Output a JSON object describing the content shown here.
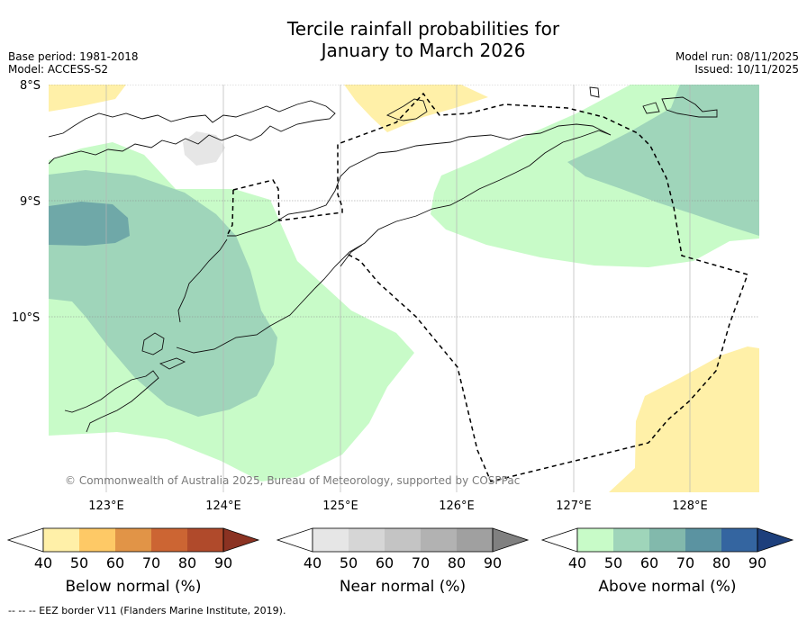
{
  "title": {
    "line1": "Tercile rainfall probabilities for",
    "line2": "January to March 2026"
  },
  "meta": {
    "base_period": "Base period: 1981-2018",
    "model": "Model: ACCESS-S2",
    "model_run": "Model run: 08/11/2025",
    "issued": "Issued: 10/11/2025"
  },
  "map": {
    "latitudes": [
      "8°S",
      "9°S",
      "10°S"
    ],
    "longitudes": [
      "123°E",
      "124°E",
      "125°E",
      "126°E",
      "127°E",
      "128°E"
    ],
    "copyright": "© Commonwealth of Australia 2025, Bureau of Meteorology, supported by COSPPac"
  },
  "colorbars": [
    {
      "title": "Below normal (%)",
      "ticks": [
        "40",
        "50",
        "60",
        "70",
        "80",
        "90"
      ],
      "colors": [
        "#fff0a8",
        "#fec966",
        "#e19447",
        "#cc6533",
        "#b04a2b",
        "#8b3222"
      ]
    },
    {
      "title": "Near normal (%)",
      "ticks": [
        "40",
        "50",
        "60",
        "70",
        "80",
        "90"
      ],
      "colors": [
        "#e6e6e6",
        "#d6d6d6",
        "#c4c4c4",
        "#b2b2b2",
        "#a0a0a0",
        "#808080"
      ]
    },
    {
      "title": "Above normal (%)",
      "ticks": [
        "40",
        "50",
        "60",
        "70",
        "80",
        "90"
      ],
      "colors": [
        "#c8fbc8",
        "#9fd5ba",
        "#82b9ac",
        "#5b93a1",
        "#3465a0",
        "#1d3f7c"
      ]
    }
  ],
  "footnote": "--  --  -- EEZ border V11 (Flanders Marine Institute, 2019)."
}
